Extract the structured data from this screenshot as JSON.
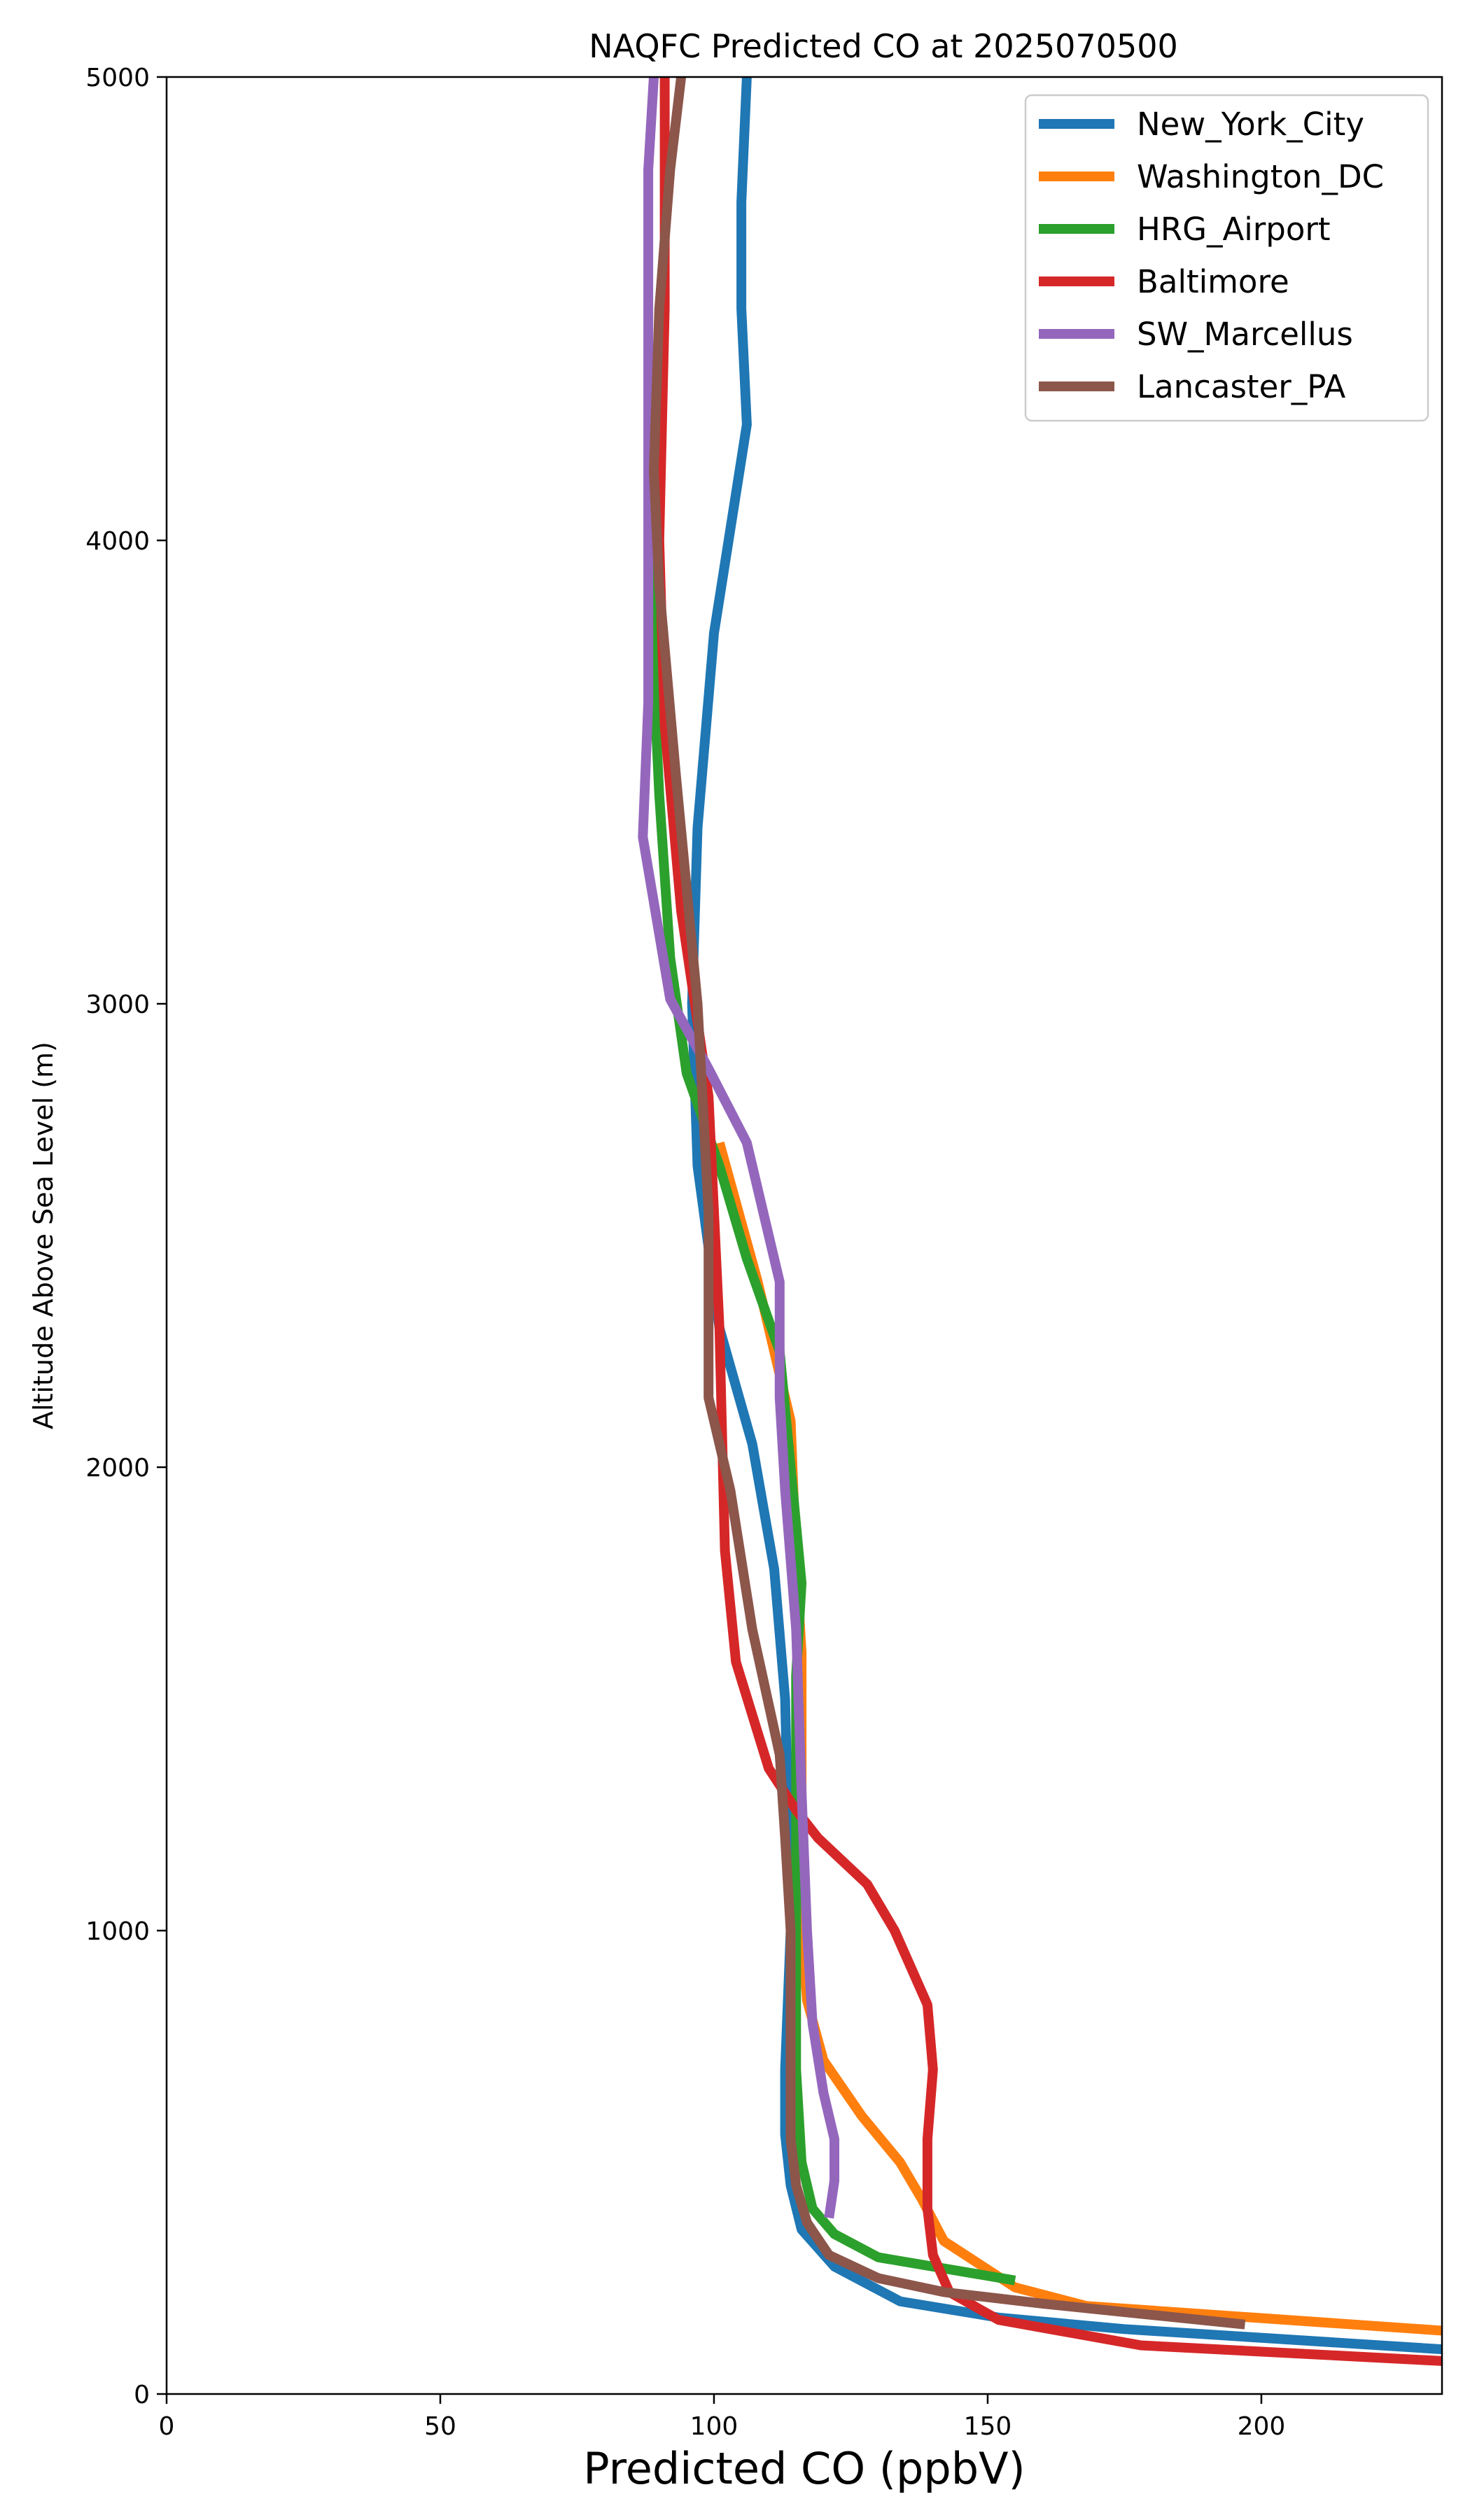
{
  "chart_data": {
    "type": "line",
    "title": "NAQFC Predicted CO at 2025070500",
    "xlabel": "Predicted CO (ppbV)",
    "ylabel": "Altitude Above Sea Level (m)",
    "xlim": [
      0,
      233
    ],
    "ylim": [
      0,
      5000
    ],
    "x_ticks": [
      "0",
      "50",
      "100",
      "150",
      "200"
    ],
    "y_ticks": [
      "0",
      "1000",
      "2000",
      "3000",
      "4000",
      "5000"
    ],
    "grid": false,
    "legend_position": "top-right",
    "series": [
      {
        "name": "New_York_City",
        "color": "#1f77b4",
        "points": [
          [
            235,
            95
          ],
          [
            175,
            140
          ],
          [
            152,
            165
          ],
          [
            134,
            200
          ],
          [
            122,
            275
          ],
          [
            116,
            355
          ],
          [
            114,
            450
          ],
          [
            113,
            560
          ],
          [
            113,
            700
          ],
          [
            114,
            1000
          ],
          [
            113,
            1500
          ],
          [
            111,
            1780
          ],
          [
            107,
            2050
          ],
          [
            101,
            2300
          ],
          [
            97,
            2650
          ],
          [
            96,
            3000
          ],
          [
            97,
            3380
          ],
          [
            100,
            3800
          ],
          [
            106,
            4250
          ],
          [
            105,
            4500
          ],
          [
            105,
            4730
          ],
          [
            106,
            5000
          ]
        ]
      },
      {
        "name": "Washington_DC",
        "color": "#ff7f0e",
        "points": [
          [
            235,
            135
          ],
          [
            168,
            190
          ],
          [
            155,
            230
          ],
          [
            142,
            330
          ],
          [
            138,
            420
          ],
          [
            134,
            500
          ],
          [
            127,
            600
          ],
          [
            120,
            720
          ],
          [
            117,
            850
          ],
          [
            116,
            1000
          ],
          [
            116,
            1300
          ],
          [
            116,
            1600
          ],
          [
            115,
            1800
          ],
          [
            114,
            2100
          ],
          [
            108,
            2400
          ],
          [
            101,
            2700
          ]
        ]
      },
      {
        "name": "HRG_Airport",
        "color": "#2ca02c",
        "points": [
          [
            155,
            245
          ],
          [
            130,
            295
          ],
          [
            122,
            345
          ],
          [
            118,
            400
          ],
          [
            116,
            500
          ],
          [
            115,
            700
          ],
          [
            115,
            1000
          ],
          [
            115,
            1300
          ],
          [
            115,
            1550
          ],
          [
            116,
            1750
          ],
          [
            114,
            2000
          ],
          [
            112,
            2250
          ],
          [
            106,
            2450
          ],
          [
            101,
            2650
          ],
          [
            95,
            2850
          ],
          [
            92,
            3100
          ],
          [
            90,
            3450
          ],
          [
            89,
            3700
          ],
          [
            89,
            4000
          ],
          [
            89,
            4300
          ]
        ]
      },
      {
        "name": "Baltimore",
        "color": "#d62728",
        "points": [
          [
            235,
            70
          ],
          [
            178,
            105
          ],
          [
            152,
            160
          ],
          [
            143,
            220
          ],
          [
            140,
            300
          ],
          [
            139,
            400
          ],
          [
            139,
            550
          ],
          [
            140,
            700
          ],
          [
            139,
            840
          ],
          [
            133,
            1000
          ],
          [
            128,
            1100
          ],
          [
            119,
            1200
          ],
          [
            115,
            1260
          ],
          [
            110,
            1350
          ],
          [
            104,
            1580
          ],
          [
            102,
            1820
          ],
          [
            101,
            2300
          ],
          [
            99,
            2800
          ],
          [
            94,
            3200
          ],
          [
            91,
            3600
          ],
          [
            90,
            4000
          ],
          [
            91,
            4500
          ],
          [
            91,
            5000
          ]
        ]
      },
      {
        "name": "SW_Marcellus",
        "color": "#9467bd",
        "points": [
          [
            121,
            380
          ],
          [
            122,
            460
          ],
          [
            122,
            550
          ],
          [
            120,
            650
          ],
          [
            118,
            800
          ],
          [
            117,
            1000
          ],
          [
            116,
            1300
          ],
          [
            115,
            1650
          ],
          [
            113,
            1950
          ],
          [
            112,
            2150
          ],
          [
            112,
            2400
          ],
          [
            106,
            2700
          ],
          [
            99,
            2860
          ],
          [
            92,
            3010
          ],
          [
            87,
            3360
          ],
          [
            88,
            3650
          ],
          [
            88,
            4000
          ],
          [
            88,
            4500
          ],
          [
            88,
            4800
          ],
          [
            89,
            5000
          ]
        ]
      },
      {
        "name": "Lancaster_PA",
        "color": "#8c564b",
        "points": [
          [
            197,
            150
          ],
          [
            160,
            195
          ],
          [
            142,
            220
          ],
          [
            130,
            250
          ],
          [
            121,
            300
          ],
          [
            117,
            370
          ],
          [
            115,
            450
          ],
          [
            114,
            550
          ],
          [
            114,
            700
          ],
          [
            114,
            1000
          ],
          [
            113,
            1200
          ],
          [
            112,
            1380
          ],
          [
            107,
            1650
          ],
          [
            103,
            1950
          ],
          [
            99,
            2150
          ],
          [
            99,
            2550
          ],
          [
            97,
            3000
          ],
          [
            93,
            3500
          ],
          [
            90,
            3900
          ],
          [
            89,
            4150
          ],
          [
            90,
            4500
          ],
          [
            92,
            4800
          ],
          [
            94,
            5000
          ]
        ]
      }
    ]
  }
}
